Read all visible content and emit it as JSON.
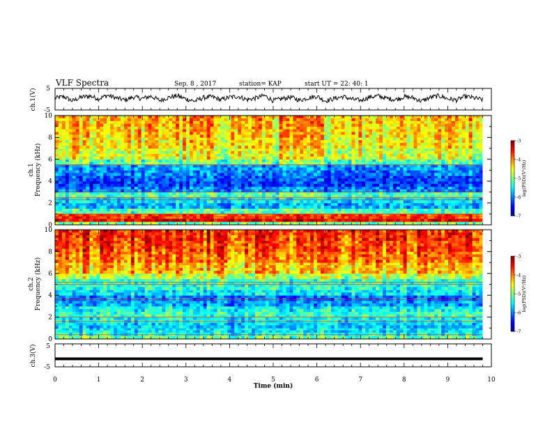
{
  "header": {
    "title": "VLF Spectra",
    "date": "Sep. 8 , 2017",
    "station": "station= KAP",
    "start": "start UT = 22: 40: 1"
  },
  "colors": {
    "jet": [
      "#00008f",
      "#0000ff",
      "#0080ff",
      "#00ffff",
      "#80ff80",
      "#ffff00",
      "#ff8000",
      "#ff0000",
      "#800000"
    ],
    "frame": "#000000",
    "trace": "#000000"
  },
  "chart_data": [
    {
      "type": "line",
      "id": "ch1-waveform",
      "ylabel": "ch.1(V)",
      "ylim": [
        -5,
        5
      ],
      "ytick_labels": [
        "5",
        "-5"
      ],
      "x_range_min": [
        0,
        9.8
      ],
      "series": [
        {
          "values_min": [
            0,
            0.2,
            0.4,
            0.6,
            0.8,
            1.0,
            1.2,
            1.4,
            1.6,
            1.8,
            2.0,
            2.2,
            2.4,
            2.6,
            2.8,
            3.0,
            3.2,
            3.4,
            3.6,
            3.8,
            4.0,
            4.2,
            4.4,
            4.6,
            4.8,
            5.0,
            5.2,
            5.4,
            5.6,
            5.8,
            6.0,
            6.2,
            6.4,
            6.6,
            6.8,
            7.0,
            7.2,
            7.4,
            7.6,
            7.8,
            8.0,
            8.2,
            8.4,
            8.6,
            8.8,
            9.0,
            9.2,
            9.4,
            9.6,
            9.8
          ],
          "values_v": [
            0.5,
            1.2,
            -0.8,
            0.9,
            1.5,
            0.2,
            1.8,
            0.6,
            -0.4,
            1.0,
            0.3,
            1.4,
            -0.6,
            0.8,
            1.6,
            0.1,
            -0.9,
            0.7,
            1.1,
            -0.3,
            0.9,
            1.3,
            -0.2,
            0.5,
            1.7,
            -0.7,
            0.2,
            1.0,
            -0.5,
            0.6,
            1.4,
            -0.8,
            0.3,
            1.2,
            0.0,
            -0.6,
            0.9,
            1.5,
            0.4,
            -0.2,
            1.1,
            0.7,
            -0.9,
            0.8,
            1.6,
            0.2,
            -0.4,
            1.3,
            0.6,
            -0.3
          ]
        }
      ]
    },
    {
      "type": "heatmap",
      "id": "ch1-spectrogram",
      "ylabel_lines": [
        "ch.1",
        "Frequency (kHz)"
      ],
      "ylim": [
        0,
        10
      ],
      "ytick_labels": [
        "0",
        "2",
        "4",
        "6",
        "8",
        "10"
      ],
      "x_range_min": [
        0,
        9.8
      ],
      "colorbar": {
        "label": "log(PSD)(V²/Hz)",
        "range": [
          -7,
          -3
        ],
        "tick_labels": [
          "-3",
          "-4",
          "-5",
          "-6",
          "-7"
        ]
      },
      "freq_bands_khz": [
        0,
        0.3,
        0.6,
        1.0,
        1.5,
        2.0,
        2.5,
        3.0,
        3.5,
        4.0,
        4.5,
        5.0,
        5.5,
        6.0,
        7.0,
        8.0,
        9.0,
        10.0
      ],
      "band_mean_log_psd": [
        -5.0,
        -3.4,
        -3.7,
        -5.2,
        -5.8,
        -5.6,
        -5.2,
        -6.0,
        -6.3,
        -6.2,
        -6.0,
        -5.9,
        -5.1,
        -4.6,
        -4.4,
        -4.3,
        -4.2
      ],
      "lines_khz": [
        0.55,
        0.75,
        1.0,
        2.3,
        2.5,
        3.0,
        5.5
      ]
    },
    {
      "type": "heatmap",
      "id": "ch2-spectrogram",
      "ylabel_lines": [
        "ch.2",
        "Frequency (kHz)"
      ],
      "ylim": [
        0,
        10
      ],
      "ytick_labels": [
        "0",
        "2",
        "4",
        "6",
        "8",
        "10"
      ],
      "x_range_min": [
        0,
        9.8
      ],
      "colorbar": {
        "label": "log(PSD)(V²/Hz)",
        "range": [
          -7,
          -3
        ],
        "tick_labels": [
          "-3",
          "-4",
          "-5",
          "-6",
          "-7"
        ]
      },
      "freq_bands_khz": [
        0,
        0.3,
        0.6,
        1.0,
        1.5,
        2.0,
        2.5,
        3.0,
        3.5,
        4.0,
        4.5,
        5.0,
        5.5,
        6.0,
        7.0,
        8.0,
        9.0,
        10.0
      ],
      "band_mean_log_psd": [
        -5.1,
        -5.4,
        -5.6,
        -5.7,
        -5.5,
        -5.3,
        -5.5,
        -5.9,
        -6.1,
        -5.6,
        -5.4,
        -5.3,
        -4.8,
        -4.3,
        -4.0,
        -3.8,
        -3.7
      ],
      "lines_khz": [
        0.4,
        1.6,
        2.0,
        3.6,
        5.0,
        5.2
      ]
    },
    {
      "type": "line",
      "id": "ch3-waveform",
      "ylabel": "ch.3(V)",
      "ylim": [
        -5,
        5
      ],
      "ytick_labels": [
        "5",
        "-5"
      ],
      "x_range_min": [
        0,
        9.8
      ],
      "series": [
        {
          "values_min": [
            0,
            9.8
          ],
          "values_v": [
            -1.5,
            -1.5
          ]
        }
      ]
    }
  ],
  "xaxis": {
    "label": "Time (min)",
    "tick_labels": [
      "0",
      "1",
      "2",
      "3",
      "4",
      "5",
      "6",
      "7",
      "8",
      "9",
      "10"
    ],
    "range": [
      0,
      10
    ]
  }
}
